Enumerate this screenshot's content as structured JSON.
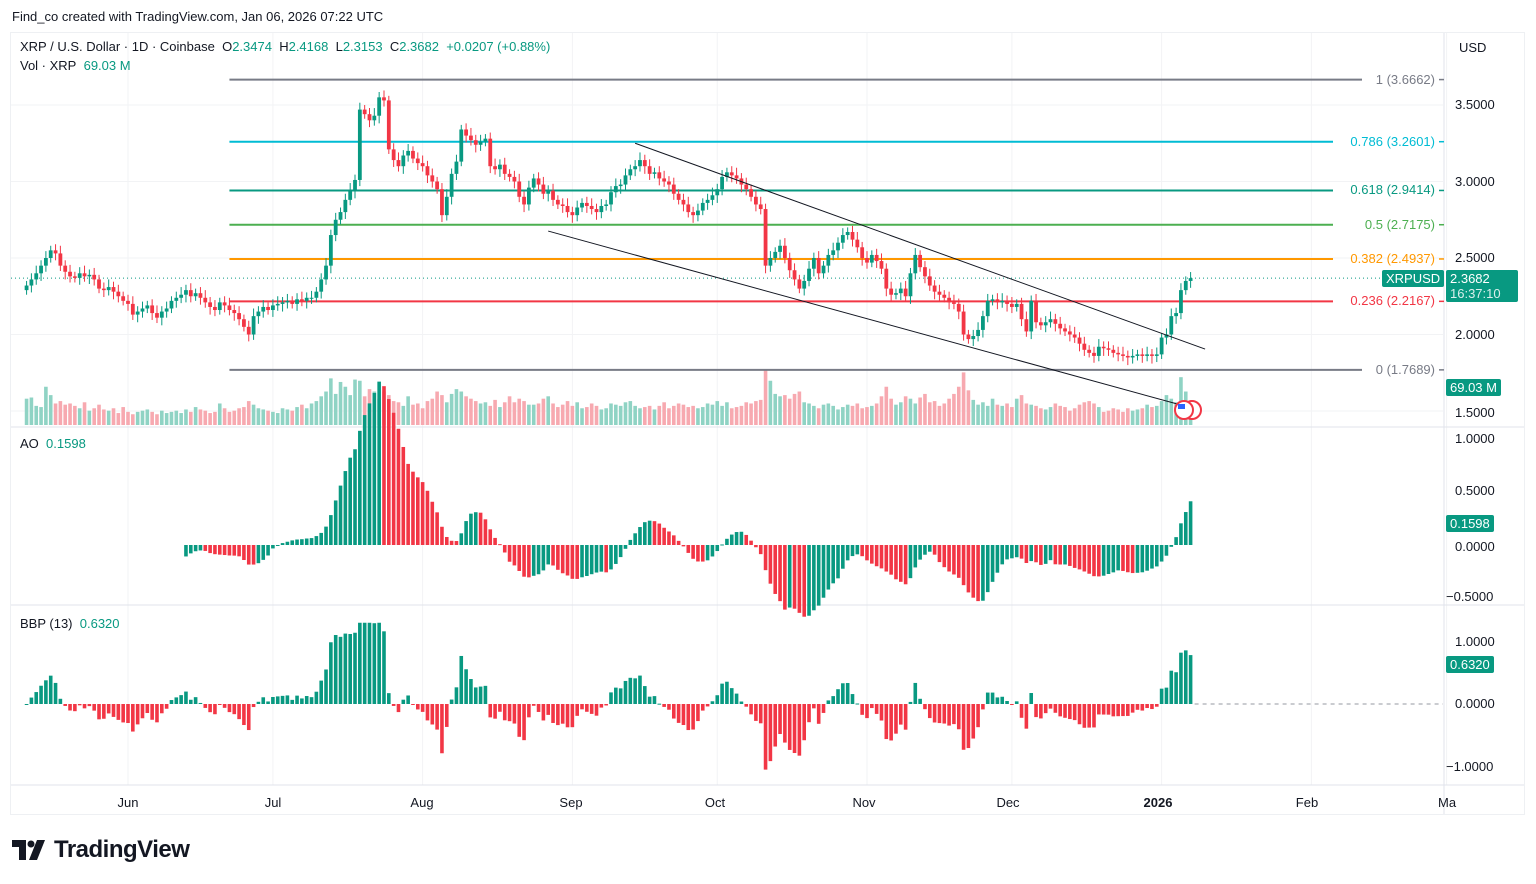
{
  "credit": "Find_co created with TradingView.com, Jan 06, 2026 07:22 UTC",
  "header": {
    "symbol": "XRP / U.S. Dollar · 1D · Coinbase",
    "o_label": "O",
    "o": "2.3474",
    "h_label": "H",
    "h": "2.4168",
    "l_label": "L",
    "l": "2.3153",
    "c_label": "C",
    "c": "2.3682",
    "change": "+0.0207 (+0.88%)",
    "vol_label": "Vol · XRP",
    "vol": "69.03 M"
  },
  "currency": "USD",
  "price_axis": [
    "3.5000",
    "3.0000",
    "2.5000",
    "2.0000",
    "1.5000"
  ],
  "ao_axis": [
    "1.0000",
    "0.5000",
    "0.0000",
    "−0.5000"
  ],
  "bbp_axis": [
    "1.0000",
    "0.0000",
    "−1.0000"
  ],
  "time_axis": [
    "Jun",
    "Jul",
    "Aug",
    "Sep",
    "Oct",
    "Nov",
    "Dec",
    "2026",
    "Feb",
    "Ma"
  ],
  "last_price": {
    "symbol": "XRPUSD",
    "price": "2.3682",
    "countdown": "16:37:10"
  },
  "volume_tag": "69.03 M",
  "ao": {
    "label": "AO",
    "value": "0.1598"
  },
  "bbp": {
    "label": "BBP (13)",
    "value": "0.6320"
  },
  "fib": [
    {
      "text": "1 (3.6662)",
      "price": 3.6662,
      "color": "#787b86"
    },
    {
      "text": "0.786 (3.2601)",
      "price": 3.2601,
      "color": "#00bcd4"
    },
    {
      "text": "0.618 (2.9414)",
      "price": 2.9414,
      "color": "#089981"
    },
    {
      "text": "0.5 (2.7175)",
      "price": 2.7175,
      "color": "#4caf50"
    },
    {
      "text": "0.382 (2.4937)",
      "price": 2.4937,
      "color": "#ff9800"
    },
    {
      "text": "0.236 (2.2167)",
      "price": 2.2167,
      "color": "#f23645"
    },
    {
      "text": "0 (1.7689)",
      "price": 1.7689,
      "color": "#787b86"
    }
  ],
  "logo": "TradingView",
  "colors": {
    "up": "#089981",
    "down": "#f23645",
    "trendline": "#131722"
  },
  "chart_data": {
    "type": "candlestick",
    "interval": "1D",
    "start_date": "2025-05-11",
    "closes": [
      2.32,
      2.36,
      2.4,
      2.45,
      2.5,
      2.55,
      2.53,
      2.45,
      2.41,
      2.38,
      2.37,
      2.4,
      2.38,
      2.39,
      2.36,
      2.3,
      2.29,
      2.31,
      2.28,
      2.25,
      2.22,
      2.2,
      2.13,
      2.15,
      2.17,
      2.19,
      2.14,
      2.11,
      2.15,
      2.17,
      2.22,
      2.24,
      2.26,
      2.29,
      2.25,
      2.27,
      2.24,
      2.21,
      2.18,
      2.16,
      2.21,
      2.19,
      2.16,
      2.14,
      2.1,
      2.05,
      2.0,
      2.12,
      2.15,
      2.18,
      2.16,
      2.19,
      2.2,
      2.21,
      2.22,
      2.2,
      2.23,
      2.22,
      2.24,
      2.24,
      2.28,
      2.36,
      2.45,
      2.65,
      2.75,
      2.8,
      2.88,
      2.94,
      3.01,
      3.47,
      3.44,
      3.4,
      3.43,
      3.55,
      3.53,
      3.21,
      3.14,
      3.1,
      3.17,
      3.2,
      3.15,
      3.12,
      3.1,
      3.04,
      3.0,
      2.95,
      2.78,
      2.9,
      3.05,
      3.13,
      3.34,
      3.3,
      3.27,
      3.24,
      3.26,
      3.28,
      3.1,
      3.08,
      3.11,
      3.05,
      3.03,
      3.0,
      2.9,
      2.85,
      2.96,
      3.02,
      2.98,
      2.92,
      2.94,
      2.88,
      2.85,
      2.84,
      2.8,
      2.78,
      2.83,
      2.86,
      2.84,
      2.82,
      2.8,
      2.84,
      2.85,
      2.93,
      2.97,
      2.98,
      3.04,
      3.08,
      3.1,
      3.14,
      3.1,
      3.05,
      3.06,
      3.02,
      3.0,
      2.98,
      2.92,
      2.88,
      2.85,
      2.8,
      2.78,
      2.81,
      2.86,
      2.88,
      2.91,
      2.95,
      3.03,
      3.06,
      3.04,
      3.02,
      2.98,
      2.95,
      2.9,
      2.85,
      2.82,
      2.45,
      2.5,
      2.54,
      2.58,
      2.5,
      2.42,
      2.36,
      2.3,
      2.35,
      2.43,
      2.5,
      2.4,
      2.45,
      2.52,
      2.55,
      2.6,
      2.65,
      2.67,
      2.62,
      2.57,
      2.5,
      2.47,
      2.52,
      2.48,
      2.43,
      2.3,
      2.26,
      2.27,
      2.3,
      2.25,
      2.4,
      2.52,
      2.44,
      2.38,
      2.32,
      2.28,
      2.26,
      2.24,
      2.21,
      2.2,
      2.15,
      2.0,
      1.97,
      1.99,
      2.03,
      2.12,
      2.22,
      2.23,
      2.21,
      2.22,
      2.2,
      2.18,
      2.2,
      2.1,
      2.02,
      2.22,
      2.08,
      2.06,
      2.08,
      2.1,
      2.07,
      2.04,
      2.02,
      2.0,
      1.98,
      1.94,
      1.9,
      1.88,
      1.86,
      1.92,
      1.91,
      1.9,
      1.88,
      1.87,
      1.86,
      1.85,
      1.86,
      1.87,
      1.86,
      1.87,
      1.86,
      1.87,
      1.98,
      2.0,
      2.12,
      2.14,
      2.29,
      2.35,
      2.3682
    ],
    "volume_millions": [
      110,
      115,
      80,
      75,
      160,
      125,
      90,
      100,
      85,
      90,
      80,
      70,
      95,
      60,
      70,
      85,
      65,
      60,
      70,
      50,
      75,
      55,
      45,
      55,
      60,
      65,
      55,
      45,
      60,
      50,
      55,
      60,
      50,
      65,
      55,
      75,
      65,
      60,
      50,
      55,
      90,
      70,
      55,
      60,
      70,
      75,
      100,
      85,
      70,
      65,
      60,
      55,
      50,
      70,
      65,
      60,
      75,
      85,
      70,
      90,
      100,
      120,
      140,
      195,
      130,
      180,
      160,
      125,
      190,
      185,
      120,
      150,
      140,
      110,
      140,
      125,
      100,
      95,
      80,
      120,
      85,
      90,
      70,
      100,
      110,
      140,
      125,
      95,
      130,
      150,
      140,
      120,
      110,
      100,
      90,
      95,
      80,
      105,
      75,
      95,
      120,
      95,
      110,
      100,
      85,
      85,
      90,
      110,
      120,
      90,
      75,
      85,
      100,
      80,
      95,
      70,
      75,
      90,
      80,
      65,
      70,
      90,
      85,
      80,
      95,
      100,
      80,
      70,
      75,
      80,
      65,
      80,
      95,
      70,
      80,
      90,
      85,
      75,
      80,
      70,
      75,
      90,
      85,
      100,
      80,
      95,
      70,
      75,
      80,
      95,
      90,
      100,
      105,
      230,
      185,
      130,
      120,
      125,
      110,
      130,
      140,
      95,
      90,
      80,
      70,
      85,
      90,
      80,
      65,
      75,
      85,
      80,
      90,
      70,
      75,
      80,
      90,
      120,
      160,
      110,
      85,
      95,
      120,
      110,
      90,
      115,
      130,
      95,
      100,
      80,
      90,
      110,
      130,
      160,
      220,
      145,
      105,
      85,
      95,
      80,
      110,
      85,
      80,
      90,
      75,
      110,
      125,
      90,
      85,
      80,
      70,
      65,
      75,
      90,
      80,
      75,
      60,
      70,
      85,
      95,
      100,
      90,
      75,
      55,
      60,
      70,
      65,
      55,
      70,
      60,
      65,
      70,
      85,
      75,
      80,
      100,
      125,
      110,
      95,
      200,
      140,
      69.03
    ],
    "price_ticks": [
      3.5,
      3.0,
      2.5,
      2.0,
      1.5
    ],
    "ao_ticks": [
      1.0,
      0.5,
      0.0,
      -0.5
    ],
    "bbp_ticks": [
      1.0,
      0.0,
      -1.0
    ],
    "time_ticks": [
      "2025-06-01",
      "2025-07-01",
      "2025-08-01",
      "2025-09-01",
      "2025-10-01",
      "2025-11-01",
      "2025-12-01",
      "2026-01-01",
      "2026-02-01",
      "2026-03-01"
    ],
    "fib_start_date": "2025-06-22",
    "trendlines": [
      {
        "from": {
          "date": "2025-09-14",
          "price": 3.25
        },
        "to": {
          "date": "2026-01-10",
          "price": 1.905
        }
      },
      {
        "from": {
          "date": "2025-08-27",
          "price": 2.676
        },
        "to": {
          "date": "2026-01-05",
          "price": 1.539
        }
      }
    ],
    "indicators": [
      "AO",
      "BBP (13)"
    ]
  }
}
